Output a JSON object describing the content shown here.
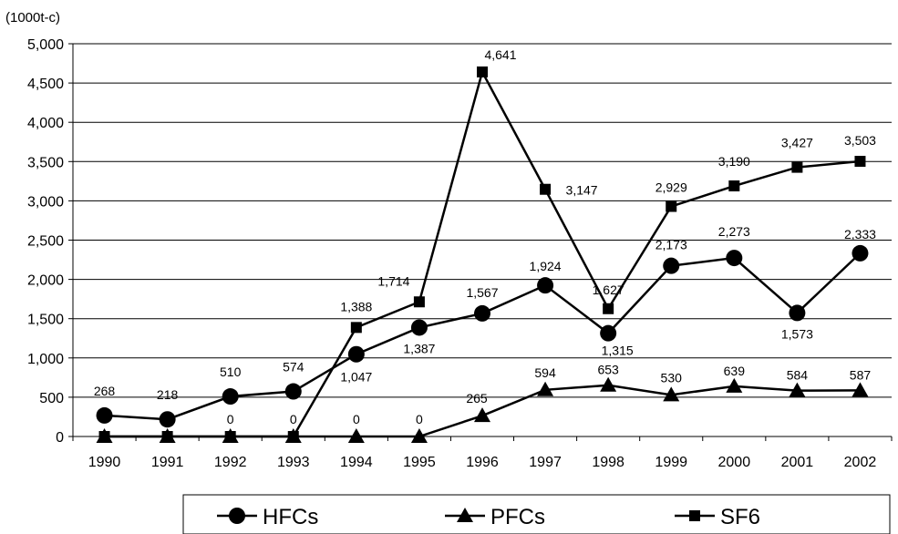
{
  "chart_data": {
    "type": "line",
    "unit_label": "(1000t-c)",
    "categories": [
      "1990",
      "1991",
      "1992",
      "1993",
      "1994",
      "1995",
      "1996",
      "1997",
      "1998",
      "1999",
      "2000",
      "2001",
      "2002"
    ],
    "ylim": [
      0,
      5000
    ],
    "yticks": [
      0,
      500,
      1000,
      1500,
      2000,
      2500,
      3000,
      3500,
      4000,
      4500,
      5000
    ],
    "ytick_labels": [
      "0",
      "500",
      "1,000",
      "1,500",
      "2,000",
      "2,500",
      "3,000",
      "3,500",
      "4,000",
      "4,500",
      "5,000"
    ],
    "grid": true,
    "legend_position": "bottom",
    "series": [
      {
        "name": "HFCs",
        "marker": "circle",
        "values": [
          268,
          218,
          510,
          574,
          1047,
          1387,
          1567,
          1924,
          1315,
          2173,
          2273,
          1573,
          2333
        ],
        "labels": [
          "268",
          "218",
          "510",
          "574",
          "1,047",
          "1,387",
          "1,567",
          "1,924",
          "1,315",
          "2,173",
          "2,273",
          "1,573",
          "2,333"
        ]
      },
      {
        "name": "PFCs",
        "marker": "triangle",
        "values": [
          0,
          0,
          0,
          0,
          0,
          0,
          265,
          594,
          653,
          530,
          639,
          584,
          587
        ],
        "labels": [
          "",
          "",
          "0",
          "0",
          "0",
          "0",
          "265",
          "594",
          "653",
          "530",
          "639",
          "584",
          "587"
        ]
      },
      {
        "name": "SF6",
        "marker": "square",
        "values": [
          0,
          0,
          0,
          0,
          1388,
          1714,
          4641,
          3147,
          1627,
          2929,
          3190,
          3427,
          3503
        ],
        "labels": [
          "",
          "",
          "",
          "",
          "1,388",
          "1,714",
          "4,641",
          "3,147",
          "1,627",
          "2,929",
          "3,190",
          "3,427",
          "3,503"
        ]
      }
    ]
  }
}
